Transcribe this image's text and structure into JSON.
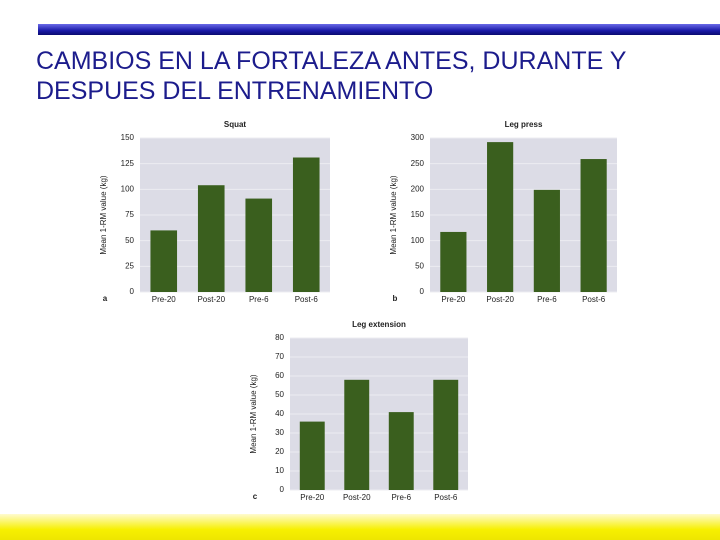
{
  "slide_title": "CAMBIOS EN LA FORTALEZA ANTES, DURANTE Y DESPUES DEL ENTRENAMIENTO",
  "chart_data": [
    {
      "type": "bar",
      "title": "Squat",
      "panel_label": "a",
      "y_label": "Mean 1-RM value (kg)",
      "categories": [
        "Pre-20",
        "Post-20",
        "Pre-6",
        "Post-6"
      ],
      "values": [
        60,
        104,
        91,
        131
      ],
      "color": "#3a5f1e",
      "ylim": [
        0,
        150
      ],
      "yticks": [
        0,
        25,
        50,
        75,
        100,
        125,
        150
      ],
      "grid": true
    },
    {
      "type": "bar",
      "title": "Leg press",
      "panel_label": "b",
      "y_label": "Mean 1-RM value (kg)",
      "categories": [
        "Pre-20",
        "Post-20",
        "Pre-6",
        "Post-6"
      ],
      "values": [
        117,
        292,
        199,
        259
      ],
      "color": "#3a5f1e",
      "ylim": [
        0,
        300
      ],
      "yticks": [
        0,
        50,
        100,
        150,
        200,
        250,
        300
      ],
      "grid": true
    },
    {
      "type": "bar",
      "title": "Leg extension",
      "panel_label": "c",
      "y_label": "Mean 1-RM value (kg)",
      "categories": [
        "Pre-20",
        "Post-20",
        "Pre-6",
        "Post-6"
      ],
      "values": [
        36,
        58,
        41,
        58
      ],
      "color": "#3a5f1e",
      "ylim": [
        0,
        80
      ],
      "yticks": [
        0,
        10,
        20,
        30,
        40,
        50,
        60,
        70,
        80
      ],
      "grid": true
    }
  ]
}
